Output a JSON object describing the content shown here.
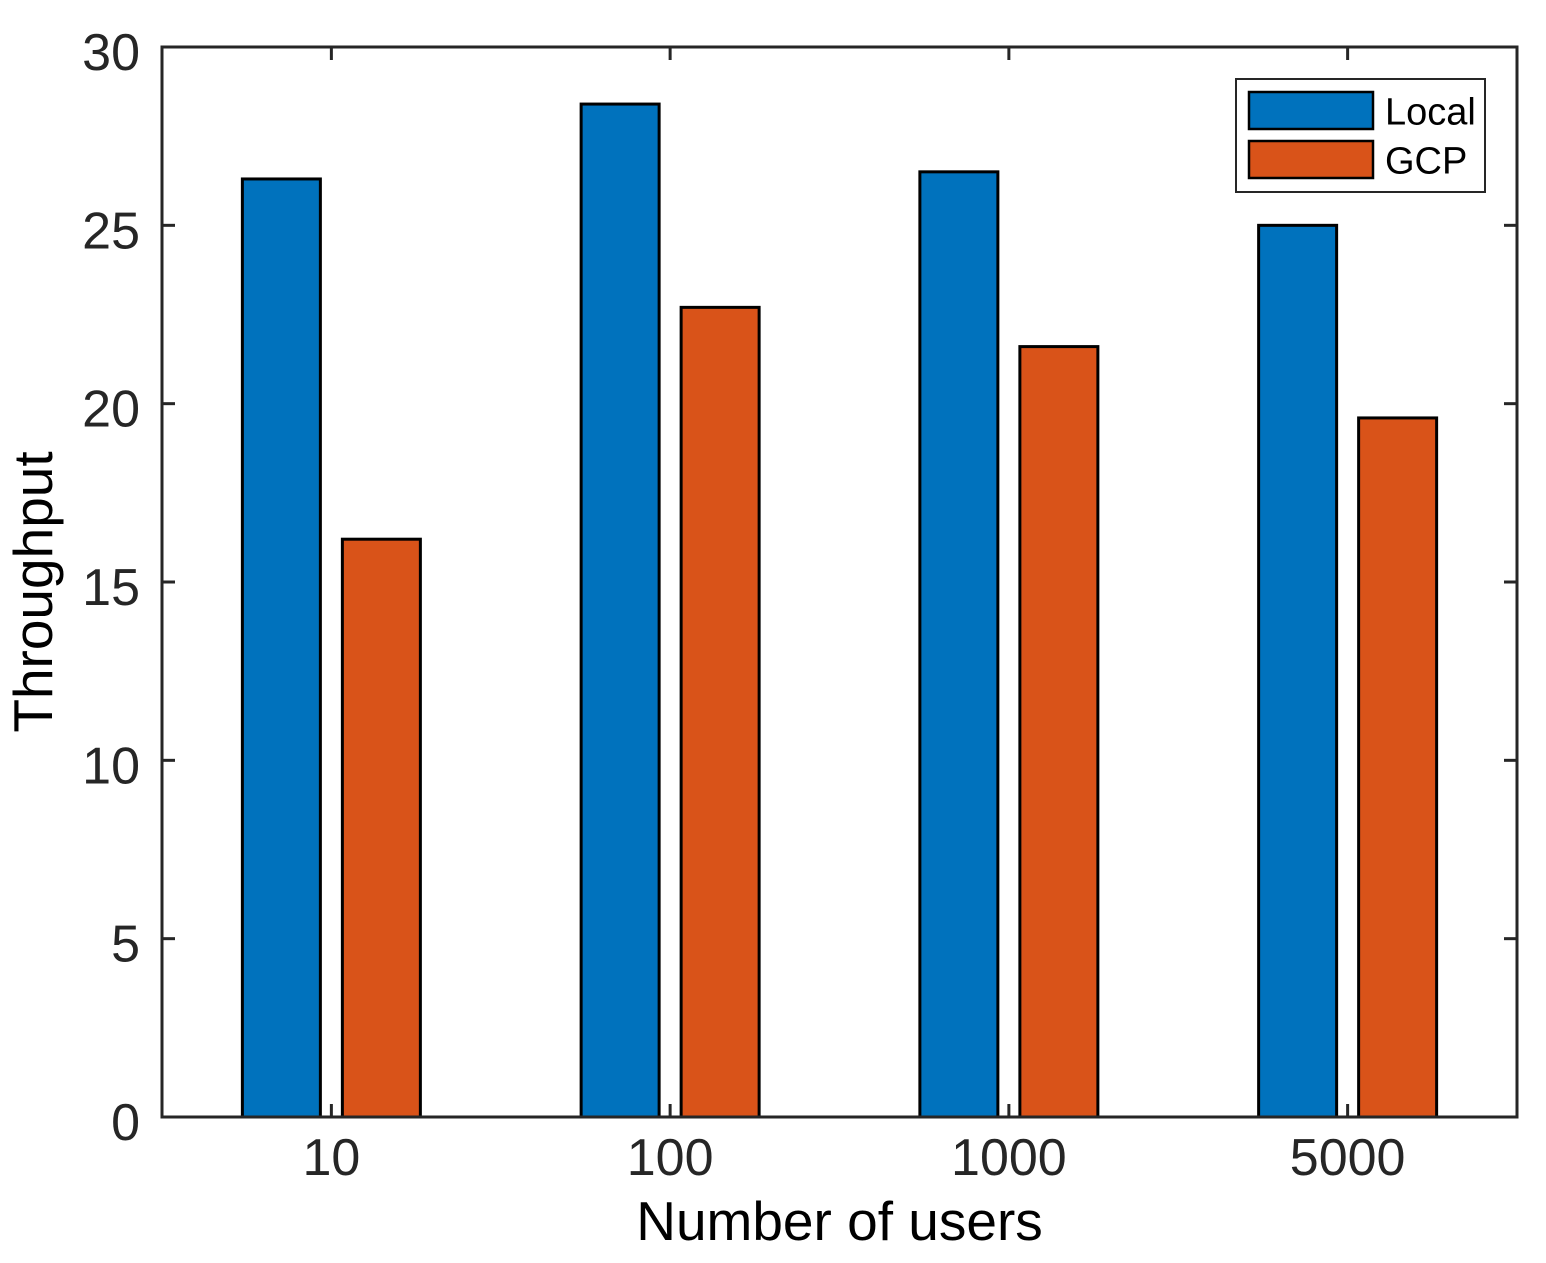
{
  "chart_data": {
    "type": "bar",
    "title": "",
    "xlabel": "Number of users",
    "ylabel": "Throughput",
    "categories": [
      "10",
      "100",
      "1000",
      "5000"
    ],
    "series": [
      {
        "name": "Local",
        "color": "#0072BD",
        "values": [
          26.3,
          28.4,
          26.5,
          25.0
        ]
      },
      {
        "name": "GCP",
        "color": "#D95319",
        "values": [
          16.2,
          22.7,
          21.6,
          19.6
        ]
      }
    ],
    "ylim": [
      0,
      30
    ],
    "yticks": [
      0,
      5,
      10,
      15,
      20,
      25,
      30
    ],
    "grid": false,
    "legend": {
      "position": "top-right",
      "entries": [
        "Local",
        "GCP"
      ]
    },
    "colors": {
      "local_series": "#0072BD",
      "gcp_series": "#D95319",
      "bar_edge": "#000000",
      "axis": "#262626",
      "tick_label": "#262626",
      "axis_label": "#000000",
      "legend_border": "#262626",
      "background": "#ffffff"
    }
  }
}
